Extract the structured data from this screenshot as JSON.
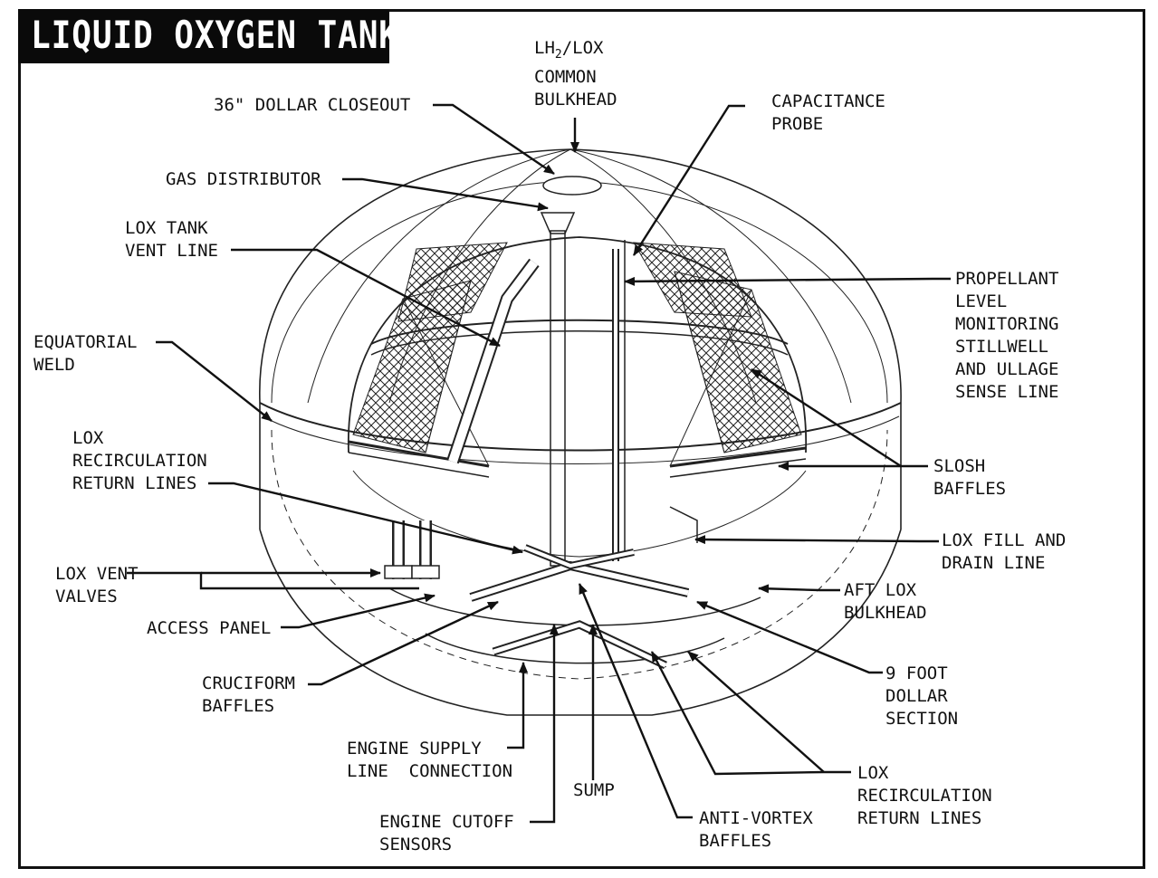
{
  "title": "LIQUID OXYGEN TANK",
  "labels": {
    "common_bulkhead": [
      "LH2/LOX",
      "COMMON",
      "BULKHEAD"
    ],
    "dollar_closeout": [
      "36\" DOLLAR CLOSEOUT"
    ],
    "capacitance_probe": [
      "CAPACITANCE",
      "PROBE"
    ],
    "gas_distributor": [
      "GAS DISTRIBUTOR"
    ],
    "vent_line": [
      "LOX TANK",
      "VENT LINE"
    ],
    "stillwell": [
      "PROPELLANT",
      "LEVEL",
      "MONITORING",
      "STILLWELL",
      "AND ULLAGE",
      "SENSE LINE"
    ],
    "equatorial_weld": [
      "EQUATORIAL",
      "WELD"
    ],
    "recirc_upper": [
      "LOX",
      "RECIRCULATION",
      "RETURN LINES"
    ],
    "slosh_baffles": [
      "SLOSH",
      "BAFFLES"
    ],
    "fill_drain": [
      "LOX FILL AND",
      "DRAIN LINE"
    ],
    "vent_valves": [
      "LOX VENT",
      "VALVES"
    ],
    "aft_bulkhead": [
      "AFT LOX",
      "BULKHEAD"
    ],
    "access_panel": [
      "ACCESS PANEL"
    ],
    "cruciform": [
      "CRUCIFORM",
      "BAFFLES"
    ],
    "nine_foot": [
      "9 FOOT",
      "DOLLAR",
      "SECTION"
    ],
    "engine_supply": [
      "ENGINE SUPPLY",
      "LINE  CONNECTION"
    ],
    "sump": [
      "SUMP"
    ],
    "recirc_lower": [
      "LOX",
      "RECIRCULATION",
      "RETURN LINES"
    ],
    "engine_cutoff": [
      "ENGINE CUTOFF",
      "SENSORS"
    ],
    "anti_vortex": [
      "ANTI-VORTEX",
      "BAFFLES"
    ]
  }
}
